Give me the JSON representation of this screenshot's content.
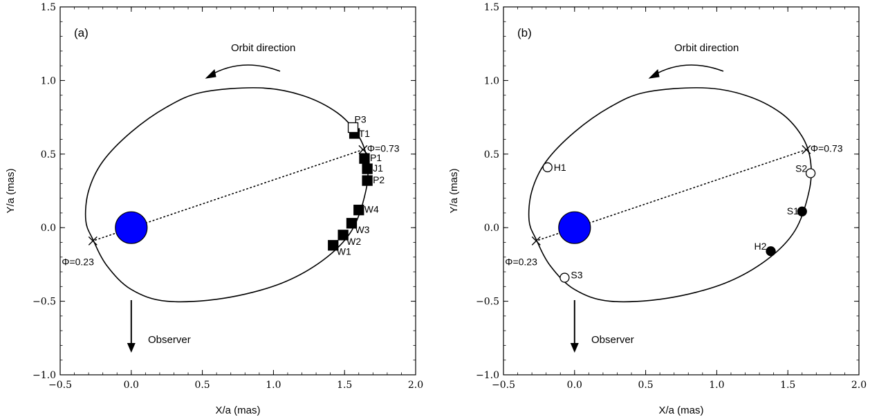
{
  "colors": {
    "star": "#0000ff",
    "ink": "#000000",
    "open_marker_fill": "#ffffff"
  },
  "chart_data": [
    {
      "type": "scatter",
      "panel_label": "(a)",
      "xlabel": "X/a (mas)",
      "ylabel": "Y/a (mas)",
      "xlim": [
        -0.5,
        2.0
      ],
      "ylim": [
        -1.0,
        1.5
      ],
      "xticks": [
        -0.5,
        0.0,
        0.5,
        1.0,
        1.5,
        2.0
      ],
      "yticks": [
        -1.0,
        -0.5,
        0.0,
        0.5,
        1.0,
        1.5
      ],
      "x_tick_labels": [
        "−0.5",
        "0.0",
        "0.5",
        "1.0",
        "1.5",
        "2.0"
      ],
      "y_tick_labels": [
        "−1.0",
        "−0.5",
        "0.0",
        "0.5",
        "1.0",
        "1.5"
      ],
      "orbit": {
        "label": "Orbit direction",
        "points": [
          [
            -0.27,
            -0.08
          ],
          [
            -0.32,
            0.05
          ],
          [
            -0.3,
            0.25
          ],
          [
            -0.2,
            0.45
          ],
          [
            0.0,
            0.65
          ],
          [
            0.25,
            0.82
          ],
          [
            0.5,
            0.92
          ],
          [
            0.9,
            0.95
          ],
          [
            1.2,
            0.9
          ],
          [
            1.45,
            0.78
          ],
          [
            1.6,
            0.62
          ],
          [
            1.66,
            0.45
          ],
          [
            1.65,
            0.25
          ],
          [
            1.55,
            -0.02
          ],
          [
            1.35,
            -0.22
          ],
          [
            1.05,
            -0.38
          ],
          [
            0.65,
            -0.48
          ],
          [
            0.25,
            -0.5
          ],
          [
            0.0,
            -0.42
          ],
          [
            -0.17,
            -0.26
          ],
          [
            -0.27,
            -0.08
          ]
        ]
      },
      "star": {
        "x": 0.0,
        "y": 0.0
      },
      "phase_marks": [
        {
          "x": 1.63,
          "y": 0.53,
          "label": "Φ=0.73"
        },
        {
          "x": -0.27,
          "y": -0.09,
          "label": "Φ=0.23"
        }
      ],
      "series": [
        {
          "marker": "filled-square",
          "points": [
            {
              "label": "T1",
              "x": 1.57,
              "y": 0.64
            },
            {
              "label": "P1",
              "x": 1.64,
              "y": 0.47
            },
            {
              "label": "J1",
              "x": 1.66,
              "y": 0.4
            },
            {
              "label": "P2",
              "x": 1.66,
              "y": 0.32
            },
            {
              "label": "W4",
              "x": 1.6,
              "y": 0.12
            },
            {
              "label": "W3",
              "x": 1.55,
              "y": 0.03
            },
            {
              "label": "W2",
              "x": 1.49,
              "y": -0.05
            },
            {
              "label": "W1",
              "x": 1.42,
              "y": -0.12
            }
          ]
        },
        {
          "marker": "open-square",
          "points": [
            {
              "label": "P3",
              "x": 1.56,
              "y": 0.68
            }
          ]
        }
      ],
      "observer": {
        "label": "Observer"
      }
    },
    {
      "type": "scatter",
      "panel_label": "(b)",
      "xlabel": "X/a (mas)",
      "ylabel": "Y/a (mas)",
      "xlim": [
        -0.5,
        2.0
      ],
      "ylim": [
        -1.0,
        1.5
      ],
      "xticks": [
        -0.5,
        0.0,
        0.5,
        1.0,
        1.5,
        2.0
      ],
      "yticks": [
        -1.0,
        -0.5,
        0.0,
        0.5,
        1.0,
        1.5
      ],
      "x_tick_labels": [
        "−0.5",
        "0.0",
        "0.5",
        "1.0",
        "1.5",
        "2.0"
      ],
      "y_tick_labels": [
        "−1.0",
        "−0.5",
        "0.0",
        "0.5",
        "1.0",
        "1.5"
      ],
      "orbit": {
        "label": "Orbit direction",
        "points": [
          [
            -0.27,
            -0.08
          ],
          [
            -0.32,
            0.05
          ],
          [
            -0.3,
            0.25
          ],
          [
            -0.2,
            0.45
          ],
          [
            0.0,
            0.65
          ],
          [
            0.25,
            0.82
          ],
          [
            0.5,
            0.92
          ],
          [
            0.9,
            0.95
          ],
          [
            1.2,
            0.9
          ],
          [
            1.45,
            0.78
          ],
          [
            1.6,
            0.62
          ],
          [
            1.66,
            0.45
          ],
          [
            1.65,
            0.25
          ],
          [
            1.55,
            -0.02
          ],
          [
            1.35,
            -0.22
          ],
          [
            1.05,
            -0.38
          ],
          [
            0.65,
            -0.48
          ],
          [
            0.25,
            -0.5
          ],
          [
            0.0,
            -0.42
          ],
          [
            -0.17,
            -0.26
          ],
          [
            -0.27,
            -0.08
          ]
        ]
      },
      "star": {
        "x": 0.0,
        "y": 0.0
      },
      "phase_marks": [
        {
          "x": 1.63,
          "y": 0.53,
          "label": "Φ=0.73"
        },
        {
          "x": -0.27,
          "y": -0.09,
          "label": "Φ=0.23"
        }
      ],
      "series": [
        {
          "marker": "open-circle",
          "points": [
            {
              "label": "H1",
              "x": -0.19,
              "y": 0.41
            },
            {
              "label": "S2",
              "x": 1.66,
              "y": 0.37
            },
            {
              "label": "S3",
              "x": -0.07,
              "y": -0.34
            }
          ]
        },
        {
          "marker": "filled-circle",
          "points": [
            {
              "label": "S1",
              "x": 1.6,
              "y": 0.11
            },
            {
              "label": "H2",
              "x": 1.38,
              "y": -0.16
            }
          ]
        }
      ],
      "observer": {
        "label": "Observer"
      }
    }
  ]
}
